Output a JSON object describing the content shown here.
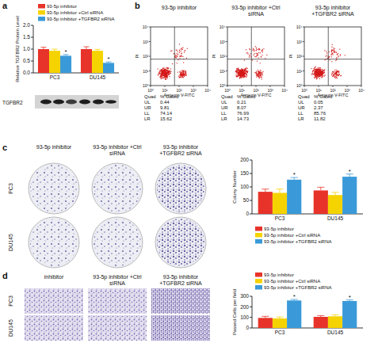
{
  "panel_labels": [
    "a",
    "b",
    "c",
    "d"
  ],
  "chart_data": [
    {
      "type": "bar",
      "y_label": "Relative TGFBR2 Protein Level",
      "categories": [
        "PC3",
        "DU145"
      ],
      "series": [
        {
          "name": "93-5p inhibitor",
          "color": "#e8332a",
          "values": [
            1.0,
            1.0
          ],
          "errors": [
            0.08,
            0.1
          ]
        },
        {
          "name": "93-5p inhibitor +Ctrl siRNA",
          "color": "#f5d300",
          "values": [
            0.93,
            0.93
          ],
          "errors": [
            0.07,
            0.06
          ]
        },
        {
          "name": "93-5p inhibitor +TGFBR2 siRNA",
          "color": "#3a9ad9",
          "values": [
            0.72,
            0.42
          ],
          "errors": [
            0.05,
            0.04
          ],
          "significance": [
            "*",
            "*"
          ]
        }
      ],
      "ylim": [
        0,
        2
      ],
      "yticks": [
        {
          "value": 0,
          "label": "0.0"
        },
        {
          "value": 0.5,
          "label": "0.5"
        },
        {
          "value": 1,
          "label": "1.0"
        },
        {
          "value": 1.5,
          "label": "1.5"
        },
        {
          "value": 2,
          "label": "2.0"
        }
      ],
      "legend": "top"
    },
    {
      "type": "bar",
      "y_label": "Colony Number",
      "categories": [
        "PC3",
        "DU145"
      ],
      "series": [
        {
          "name": "93-5p inhibitor",
          "color": "#e8332a",
          "values": [
            82,
            87
          ],
          "errors": [
            10,
            12
          ]
        },
        {
          "name": "93-5p inhibitor +Ctrl siRNA",
          "color": "#f5d300",
          "values": [
            78,
            70
          ],
          "errors": [
            14,
            10
          ]
        },
        {
          "name": "93-5p inhibitor +TGFBR2 siRNA",
          "color": "#3a9ad9",
          "values": [
            127,
            138
          ],
          "errors": [
            8,
            10
          ],
          "significance": [
            "*",
            "*"
          ]
        }
      ],
      "ylim": [
        0,
        200
      ],
      "yticks": [
        0,
        50,
        100,
        150,
        200
      ],
      "legend": "bottom"
    },
    {
      "type": "bar",
      "y_label": "Passed Cells per field",
      "categories": [
        "PC3",
        "DU145"
      ],
      "series": [
        {
          "name": "93-5p inhibitor",
          "color": "#e8332a",
          "values": [
            95,
            105
          ],
          "errors": [
            15,
            12
          ]
        },
        {
          "name": "93-5p inhibitor +Ctrl siRNA",
          "color": "#f5d300",
          "values": [
            90,
            110
          ],
          "errors": [
            14,
            15
          ]
        },
        {
          "name": "93-5p inhibitor +TGFBR2 siRNA",
          "color": "#3a9ad9",
          "values": [
            260,
            255
          ],
          "errors": [
            10,
            10
          ],
          "significance": [
            "*",
            "*"
          ]
        }
      ],
      "ylim": [
        0,
        300
      ],
      "yticks": [
        0,
        100,
        200,
        300
      ],
      "legend": "top"
    }
  ],
  "blot": {
    "label": "TGFBR2"
  },
  "flow": {
    "x_label": "Annexin V-FITC",
    "y_label": "PI",
    "lim": [
      1,
      10000
    ],
    "ticks": [
      {
        "value": 1,
        "label": "10⁰"
      },
      {
        "value": 10,
        "label": "10¹"
      },
      {
        "value": 100,
        "label": "10²"
      },
      {
        "value": 1000,
        "label": "10³"
      },
      {
        "value": 10000,
        "label": "10⁴"
      }
    ],
    "header": [
      "Quad",
      "% Gated"
    ],
    "plots": [
      {
        "title": "93-5p inhibitor",
        "rows": [
          [
            "UL",
            0.44
          ],
          [
            "UR",
            9.81
          ],
          [
            "LL",
            74.14
          ],
          [
            "LR",
            15.62
          ]
        ]
      },
      {
        "title": "93-5p inhibitor +Ctrl siRNA",
        "rows": [
          [
            "UL",
            0.21
          ],
          [
            "UR",
            8.07
          ],
          [
            "LL",
            76.99
          ],
          [
            "LR",
            14.73
          ]
        ]
      },
      {
        "title": "93-5p inhibitor +TGFBR2 siRNA",
        "rows": [
          [
            "UL",
            0.05
          ],
          [
            "UR",
            2.37
          ],
          [
            "LL",
            85.76
          ],
          [
            "LR",
            11.82
          ]
        ]
      }
    ]
  },
  "images": {
    "c": {
      "columns": [
        "93-5p inhibitor",
        "93-5p inhibitor +Ctrl siRNA",
        "93-5p inhibitor +TGFBR2 siRNA"
      ],
      "rows": [
        "PC3",
        "DU145"
      ]
    },
    "d": {
      "columns": [
        "inhibitor",
        "93-5p inhibitor +Ctrl siRNA",
        "93-5p inhibitor +TGFBR2 siRNA"
      ],
      "rows": [
        "PC3",
        "DU145"
      ]
    }
  }
}
